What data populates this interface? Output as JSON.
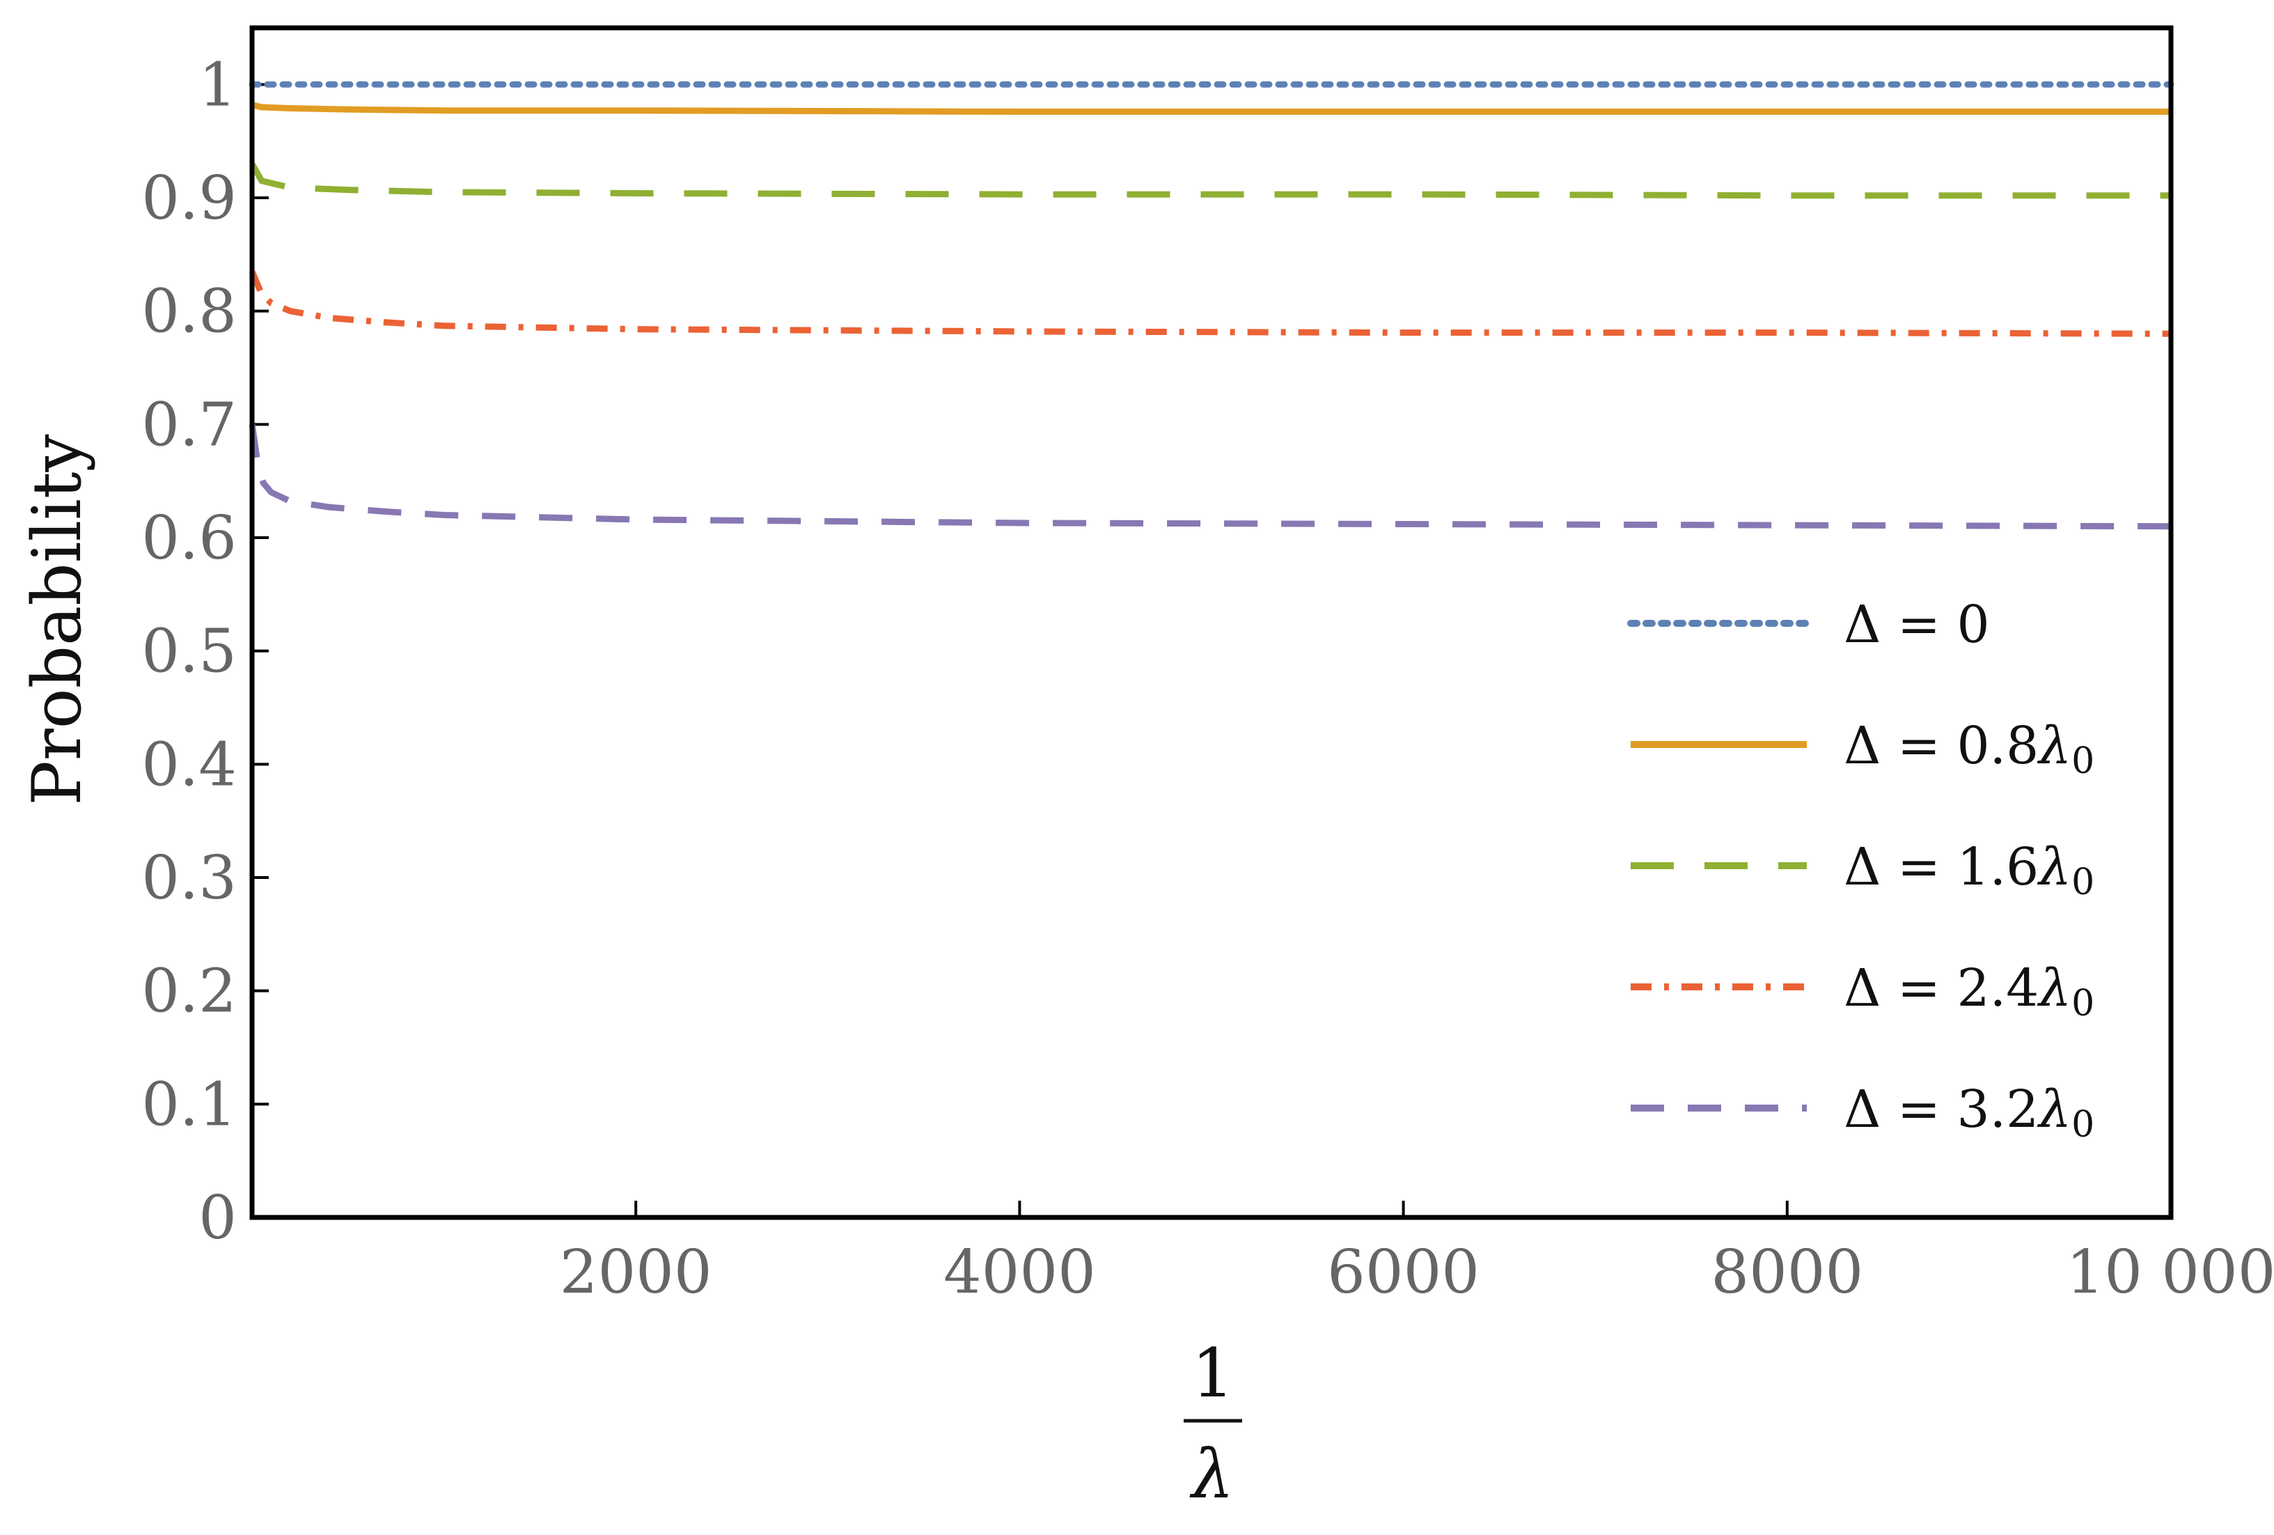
{
  "chart_data": {
    "type": "line",
    "title": "",
    "xlabel": {
      "numerator": "1",
      "denominator": "λ"
    },
    "ylabel": "Probability",
    "xlim": [
      0,
      10000
    ],
    "ylim": [
      0,
      1.05
    ],
    "grid": false,
    "legend_position": "right",
    "x_ticks": [
      {
        "value": 2000,
        "label": "2000"
      },
      {
        "value": 4000,
        "label": "4000"
      },
      {
        "value": 6000,
        "label": "6000"
      },
      {
        "value": 8000,
        "label": "8000"
      },
      {
        "value": 10000,
        "label": "10 000"
      }
    ],
    "y_ticks": [
      {
        "value": 0,
        "label": "0"
      },
      {
        "value": 0.1,
        "label": "0.1"
      },
      {
        "value": 0.2,
        "label": "0.2"
      },
      {
        "value": 0.3,
        "label": "0.3"
      },
      {
        "value": 0.4,
        "label": "0.4"
      },
      {
        "value": 0.5,
        "label": "0.5"
      },
      {
        "value": 0.6,
        "label": "0.6"
      },
      {
        "value": 0.7,
        "label": "0.7"
      },
      {
        "value": 0.8,
        "label": "0.8"
      },
      {
        "value": 0.9,
        "label": "0.9"
      },
      {
        "value": 1,
        "label": "1"
      }
    ],
    "series": [
      {
        "name": "Δ = 0",
        "label_parts": {
          "lhs": "Δ",
          "op": "=",
          "value": "0",
          "symbol": "",
          "sub": ""
        },
        "color": "#5e81b5",
        "style": "dotted",
        "x": [
          0,
          2000,
          4000,
          6000,
          8000,
          10000
        ],
        "y": [
          1.0,
          1.0,
          1.0,
          1.0,
          1.0,
          1.0
        ]
      },
      {
        "name": "Δ = 0.8λ0",
        "label_parts": {
          "lhs": "Δ",
          "op": "=",
          "value": "0.8",
          "symbol": "λ",
          "sub": "0"
        },
        "color": "#e19c24",
        "style": "solid",
        "x": [
          0,
          50,
          200,
          500,
          1000,
          2000,
          4000,
          6000,
          8000,
          10000
        ],
        "y": [
          0.982,
          0.98,
          0.979,
          0.978,
          0.977,
          0.977,
          0.976,
          0.976,
          0.976,
          0.976
        ]
      },
      {
        "name": "Δ = 1.6λ0",
        "label_parts": {
          "lhs": "Δ",
          "op": "=",
          "value": "1.6",
          "symbol": "λ",
          "sub": "0"
        },
        "color": "#8fb032",
        "style": "dashed",
        "x": [
          0,
          50,
          200,
          500,
          1000,
          2000,
          4000,
          6000,
          8000,
          10000
        ],
        "y": [
          0.93,
          0.915,
          0.909,
          0.907,
          0.905,
          0.904,
          0.903,
          0.903,
          0.902,
          0.902
        ]
      },
      {
        "name": "Δ = 2.4λ0",
        "label_parts": {
          "lhs": "Δ",
          "op": "=",
          "value": "2.4",
          "symbol": "λ",
          "sub": "0"
        },
        "color": "#eb6235",
        "style": "dashdot",
        "x": [
          0,
          50,
          100,
          200,
          400,
          700,
          1000,
          2000,
          4000,
          6000,
          8000,
          10000
        ],
        "y": [
          0.835,
          0.815,
          0.807,
          0.8,
          0.794,
          0.79,
          0.787,
          0.784,
          0.782,
          0.781,
          0.781,
          0.78
        ]
      },
      {
        "name": "Δ = 3.2λ0",
        "label_parts": {
          "lhs": "Δ",
          "op": "=",
          "value": "3.2",
          "symbol": "λ",
          "sub": "0"
        },
        "color": "#8778b3",
        "style": "longdash",
        "x": [
          0,
          30,
          60,
          100,
          200,
          400,
          700,
          1000,
          2000,
          4000,
          6000,
          8000,
          10000
        ],
        "y": [
          0.7,
          0.665,
          0.648,
          0.64,
          0.632,
          0.627,
          0.623,
          0.62,
          0.616,
          0.613,
          0.612,
          0.611,
          0.61
        ]
      }
    ]
  }
}
